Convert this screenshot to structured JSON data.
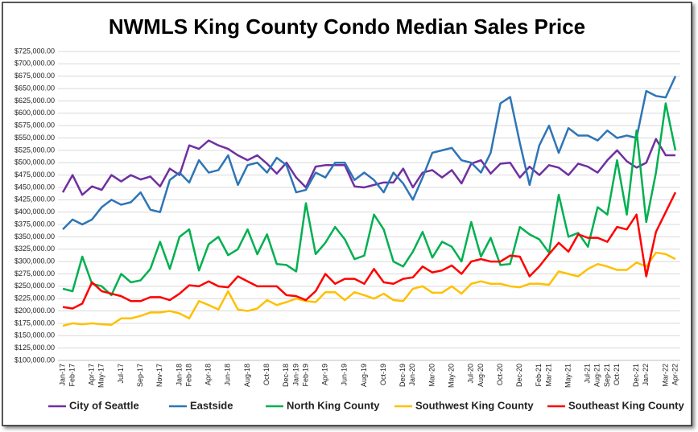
{
  "chart_data": {
    "type": "line",
    "title": "NWMLS King County Condo Median Sales Price",
    "categories": [
      "Jan-17",
      "Feb-17",
      null,
      "Apr-17",
      "May-17",
      null,
      "Jul-17",
      null,
      "Sep-17",
      null,
      "Nov-17",
      null,
      "Jan-18",
      "Feb-18",
      null,
      "Apr-18",
      null,
      "Jun-18",
      null,
      "Aug-18",
      null,
      "Oct-18",
      null,
      "Dec-18",
      "Jan-19",
      "Feb-19",
      null,
      "Apr-19",
      null,
      "Jun-19",
      null,
      "Aug-19",
      null,
      "Oct-19",
      null,
      "Dec-19",
      "Jan-20",
      null,
      "Mar-20",
      null,
      "May-20",
      null,
      "Jul-20",
      "Aug-20",
      null,
      "Oct-20",
      null,
      "Dec-20",
      null,
      "Feb-21",
      "Mar-21",
      null,
      "May-21",
      null,
      "Jul-21",
      "Aug-21",
      "Sep-21",
      "Oct-21",
      null,
      "Dec-21",
      "Jan-22",
      null,
      "Mar-22",
      "Apr-22"
    ],
    "series": [
      {
        "name": "City of Seattle",
        "color": "#7030a0",
        "values": [
          440000,
          475000,
          435000,
          452000,
          445000,
          475000,
          462000,
          475000,
          466000,
          472000,
          452000,
          488000,
          475000,
          535000,
          528000,
          545000,
          535000,
          528000,
          515000,
          505000,
          515000,
          498000,
          478000,
          500000,
          470000,
          450000,
          492000,
          495000,
          495000,
          495000,
          452000,
          450000,
          455000,
          460000,
          460000,
          488000,
          450000,
          480000,
          485000,
          470000,
          485000,
          458000,
          498000,
          505000,
          478000,
          498000,
          500000,
          470000,
          492000,
          475000,
          495000,
          490000,
          475000,
          498000,
          492000,
          480000,
          505000,
          525000,
          503000,
          490000,
          500000,
          548000,
          515000,
          515000
        ]
      },
      {
        "name": "Eastside",
        "color": "#2e75b6",
        "values": [
          365000,
          385000,
          375000,
          385000,
          410000,
          425000,
          415000,
          420000,
          440000,
          405000,
          400000,
          465000,
          480000,
          460000,
          505000,
          480000,
          485000,
          515000,
          455000,
          495000,
          500000,
          480000,
          510000,
          495000,
          440000,
          445000,
          480000,
          470000,
          500000,
          500000,
          465000,
          480000,
          465000,
          440000,
          480000,
          458000,
          425000,
          470000,
          520000,
          525000,
          530000,
          505000,
          500000,
          480000,
          520000,
          620000,
          633000,
          540000,
          455000,
          535000,
          575000,
          520000,
          570000,
          555000,
          555000,
          545000,
          565000,
          550000,
          555000,
          550000,
          645000,
          635000,
          632000,
          675000
        ]
      },
      {
        "name": "North King County",
        "color": "#00b050",
        "values": [
          245000,
          240000,
          310000,
          255000,
          250000,
          232000,
          275000,
          258000,
          262000,
          285000,
          340000,
          285000,
          350000,
          365000,
          282000,
          335000,
          350000,
          313000,
          325000,
          365000,
          315000,
          355000,
          295000,
          293000,
          280000,
          418000,
          315000,
          338000,
          370000,
          345000,
          305000,
          312000,
          395000,
          365000,
          300000,
          290000,
          320000,
          360000,
          308000,
          340000,
          330000,
          300000,
          380000,
          310000,
          348000,
          293000,
          295000,
          370000,
          355000,
          345000,
          318000,
          435000,
          350000,
          358000,
          330000,
          410000,
          395000,
          505000,
          395000,
          565000,
          380000,
          480000,
          620000,
          525000
        ]
      },
      {
        "name": "Southwest King County",
        "color": "#ffc000",
        "values": [
          170000,
          175000,
          173000,
          175000,
          173000,
          172000,
          185000,
          185000,
          190000,
          197000,
          197000,
          200000,
          195000,
          185000,
          220000,
          212000,
          203000,
          240000,
          203000,
          200000,
          205000,
          222000,
          212000,
          218000,
          225000,
          220000,
          218000,
          238000,
          238000,
          222000,
          238000,
          232000,
          225000,
          235000,
          222000,
          220000,
          245000,
          250000,
          237000,
          237000,
          250000,
          235000,
          255000,
          260000,
          255000,
          255000,
          250000,
          248000,
          255000,
          255000,
          253000,
          280000,
          275000,
          270000,
          285000,
          295000,
          290000,
          283000,
          283000,
          298000,
          290000,
          318000,
          315000,
          305000
        ]
      },
      {
        "name": "Southeast King County",
        "color": "#ff0000",
        "values": [
          208000,
          205000,
          215000,
          258000,
          240000,
          235000,
          230000,
          220000,
          220000,
          228000,
          228000,
          222000,
          235000,
          252000,
          250000,
          260000,
          250000,
          248000,
          270000,
          260000,
          250000,
          250000,
          250000,
          232000,
          230000,
          222000,
          240000,
          275000,
          255000,
          265000,
          265000,
          255000,
          285000,
          258000,
          255000,
          265000,
          268000,
          290000,
          278000,
          282000,
          292000,
          275000,
          300000,
          305000,
          300000,
          300000,
          312000,
          310000,
          270000,
          290000,
          315000,
          338000,
          320000,
          355000,
          348000,
          348000,
          340000,
          370000,
          365000,
          395000,
          270000,
          360000,
          400000,
          440000
        ]
      }
    ],
    "ylim": [
      100000,
      725000
    ],
    "yticks": [
      {
        "value": 100000,
        "label": "$100,000.00"
      },
      {
        "value": 125000,
        "label": "$125,000.00"
      },
      {
        "value": 150000,
        "label": "$150,000.00"
      },
      {
        "value": 175000,
        "label": "$175,000.00"
      },
      {
        "value": 200000,
        "label": "$200,000.00"
      },
      {
        "value": 225000,
        "label": "$225,000.00"
      },
      {
        "value": 250000,
        "label": "$250,000.00"
      },
      {
        "value": 275000,
        "label": "$275,000.00"
      },
      {
        "value": 300000,
        "label": "$300,000.00"
      },
      {
        "value": 325000,
        "label": "$325,000.00"
      },
      {
        "value": 350000,
        "label": "$350,000.00"
      },
      {
        "value": 375000,
        "label": "$375,000.00"
      },
      {
        "value": 400000,
        "label": "$400,000.00"
      },
      {
        "value": 425000,
        "label": "$425,000.00"
      },
      {
        "value": 450000,
        "label": "$450,000.00"
      },
      {
        "value": 475000,
        "label": "$475,000.00"
      },
      {
        "value": 500000,
        "label": "$500,000.00"
      },
      {
        "value": 525000,
        "label": "$525,000.00"
      },
      {
        "value": 550000,
        "label": "$550,000.00"
      },
      {
        "value": 575000,
        "label": "$575,000.00"
      },
      {
        "value": 600000,
        "label": "$600,000.00"
      },
      {
        "value": 625000,
        "label": "$625,000.00"
      },
      {
        "value": 650000,
        "label": "$650,000.00"
      },
      {
        "value": 675000,
        "label": "$675,000.00"
      },
      {
        "value": 700000,
        "label": "$700,000.00"
      },
      {
        "value": 725000,
        "label": "$725,000.00"
      }
    ],
    "grid": true,
    "legend": "bottom"
  }
}
